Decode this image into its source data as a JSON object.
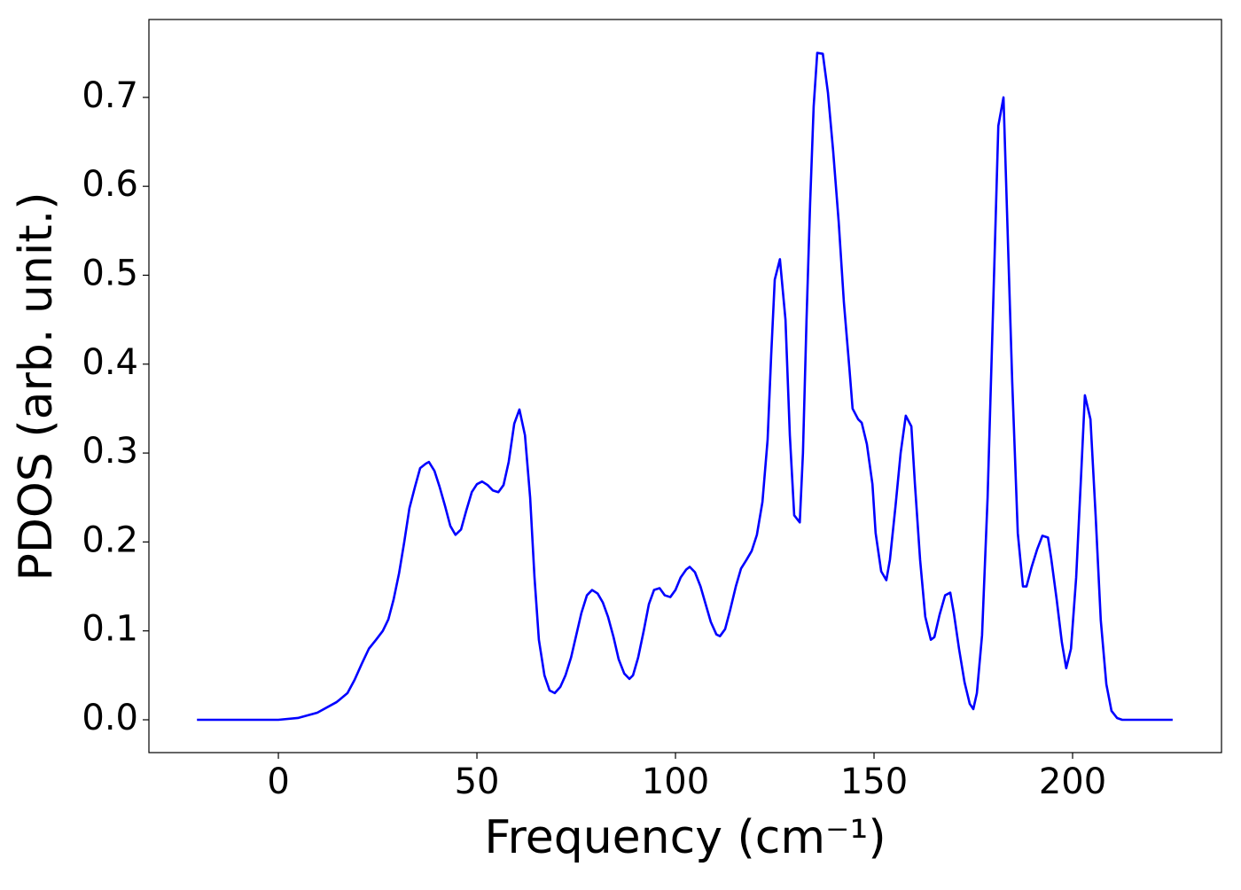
{
  "chart_data": {
    "type": "line",
    "xlabel": "Frequency (cm⁻¹)",
    "ylabel": "PDOS (arb. unit.)",
    "color": "#0000ff",
    "x": [
      -20.5,
      0,
      4.9,
      9.8,
      14.7,
      17.4,
      19.2,
      21.0,
      22.8,
      24.6,
      26.3,
      27.7,
      29.0,
      30.4,
      31.7,
      33.0,
      34.4,
      35.7,
      37.1,
      37.9,
      39.3,
      40.6,
      42.0,
      43.3,
      44.6,
      46.0,
      47.3,
      48.7,
      50.0,
      51.3,
      52.7,
      54.0,
      55.4,
      56.7,
      58.0,
      59.4,
      60.7,
      62.1,
      63.4,
      64.5,
      65.6,
      67.0,
      68.3,
      69.6,
      71.0,
      72.3,
      73.7,
      75.0,
      76.3,
      77.7,
      79.0,
      80.4,
      81.7,
      83.0,
      84.4,
      85.7,
      87.1,
      88.4,
      89.3,
      90.6,
      92.0,
      93.3,
      94.6,
      96.0,
      97.3,
      98.7,
      100.0,
      101.3,
      102.7,
      103.6,
      104.9,
      106.3,
      107.6,
      108.9,
      110.3,
      111.2,
      112.5,
      113.8,
      115.2,
      116.5,
      117.9,
      119.2,
      120.5,
      121.9,
      123.2,
      124.1,
      125.0,
      126.3,
      127.7,
      128.8,
      129.9,
      131.3,
      132.1,
      133.0,
      133.9,
      134.8,
      135.7,
      137.1,
      138.4,
      139.7,
      141.1,
      142.4,
      143.8,
      144.6,
      146.0,
      146.9,
      148.2,
      149.6,
      150.4,
      151.8,
      153.1,
      154.0,
      155.4,
      156.7,
      158.0,
      159.4,
      160.3,
      161.6,
      162.9,
      164.3,
      165.2,
      166.5,
      167.9,
      169.2,
      170.1,
      171.4,
      172.8,
      174.1,
      175.0,
      175.9,
      177.2,
      178.6,
      179.9,
      181.3,
      182.6,
      183.5,
      184.8,
      186.2,
      187.5,
      188.4,
      189.7,
      191.1,
      192.4,
      193.8,
      194.6,
      196.0,
      197.3,
      198.4,
      199.6,
      200.9,
      202.2,
      203.1,
      204.5,
      205.8,
      207.1,
      208.5,
      209.8,
      211.2,
      212.5,
      225.2
    ],
    "values": [
      0,
      0,
      0.002,
      0.008,
      0.02,
      0.03,
      0.045,
      0.063,
      0.08,
      0.09,
      0.1,
      0.113,
      0.135,
      0.165,
      0.2,
      0.238,
      0.262,
      0.283,
      0.288,
      0.29,
      0.28,
      0.262,
      0.24,
      0.218,
      0.208,
      0.214,
      0.235,
      0.256,
      0.265,
      0.268,
      0.264,
      0.258,
      0.256,
      0.264,
      0.29,
      0.333,
      0.349,
      0.32,
      0.25,
      0.16,
      0.09,
      0.05,
      0.033,
      0.03,
      0.037,
      0.05,
      0.07,
      0.095,
      0.12,
      0.14,
      0.146,
      0.142,
      0.132,
      0.116,
      0.093,
      0.068,
      0.052,
      0.046,
      0.05,
      0.07,
      0.1,
      0.13,
      0.146,
      0.148,
      0.14,
      0.138,
      0.146,
      0.16,
      0.169,
      0.172,
      0.166,
      0.15,
      0.13,
      0.11,
      0.096,
      0.094,
      0.102,
      0.124,
      0.15,
      0.17,
      0.18,
      0.19,
      0.208,
      0.245,
      0.315,
      0.41,
      0.495,
      0.518,
      0.45,
      0.32,
      0.23,
      0.222,
      0.3,
      0.45,
      0.58,
      0.69,
      0.75,
      0.749,
      0.705,
      0.64,
      0.56,
      0.47,
      0.395,
      0.35,
      0.338,
      0.334,
      0.31,
      0.265,
      0.21,
      0.167,
      0.157,
      0.18,
      0.24,
      0.3,
      0.342,
      0.33,
      0.265,
      0.18,
      0.116,
      0.09,
      0.093,
      0.118,
      0.14,
      0.143,
      0.12,
      0.08,
      0.042,
      0.018,
      0.012,
      0.03,
      0.095,
      0.25,
      0.45,
      0.668,
      0.7,
      0.57,
      0.38,
      0.21,
      0.15,
      0.15,
      0.172,
      0.192,
      0.207,
      0.205,
      0.182,
      0.135,
      0.087,
      0.058,
      0.08,
      0.16,
      0.28,
      0.365,
      0.338,
      0.23,
      0.112,
      0.04,
      0.01,
      0.002,
      0,
      0
    ],
    "xlim": [
      -32.6,
      237.5
    ],
    "ylim": [
      -0.0369,
      0.7876
    ],
    "xticks": [
      0,
      50,
      100,
      150,
      200
    ],
    "yticks": [
      {
        "value": 0,
        "label": "0.0"
      },
      0.1,
      0.2,
      0.3,
      0.4,
      0.5,
      0.6,
      0.7
    ]
  }
}
